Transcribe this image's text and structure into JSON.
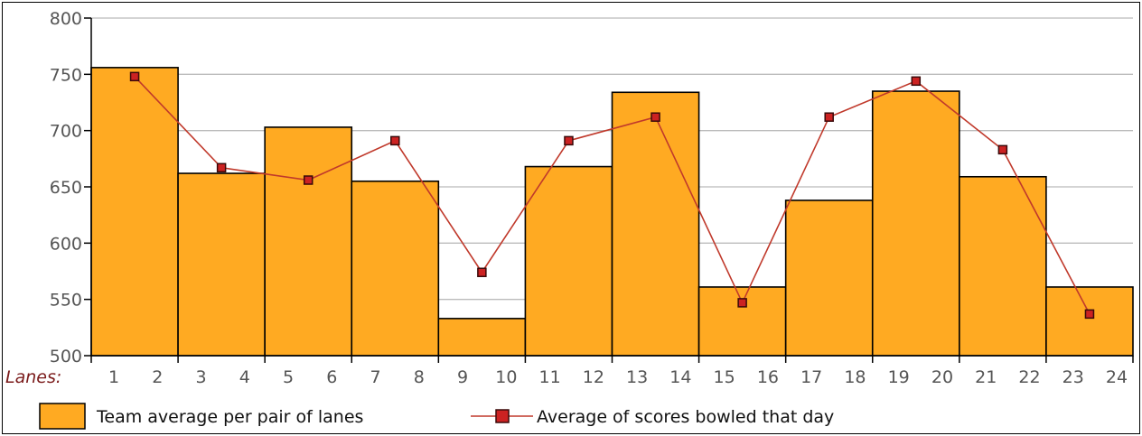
{
  "chart_data": {
    "type": "bar",
    "title": "",
    "xlabel": "Lanes:",
    "ylabel": "",
    "ylim": [
      500,
      800
    ],
    "yticks": [
      500,
      550,
      600,
      650,
      700,
      750,
      800
    ],
    "x_tick_labels": [
      "1",
      "2",
      "3",
      "4",
      "5",
      "6",
      "7",
      "8",
      "9",
      "10",
      "11",
      "12",
      "13",
      "14",
      "15",
      "16",
      "17",
      "18",
      "19",
      "20",
      "21",
      "22",
      "23",
      "24"
    ],
    "categories": [
      "1-2",
      "3-4",
      "5-6",
      "7-8",
      "9-10",
      "11-12",
      "13-14",
      "15-16",
      "17-18",
      "19-20",
      "21-22",
      "23-24"
    ],
    "series": [
      {
        "name": "Team average per pair of lanes",
        "kind": "bar",
        "values": [
          756,
          662,
          703,
          655,
          533,
          668,
          734,
          561,
          638,
          735,
          659,
          561
        ]
      },
      {
        "name": "Average of scores bowled that day",
        "kind": "line",
        "values": [
          748,
          667,
          656,
          691,
          574,
          691,
          712,
          547,
          712,
          744,
          683,
          537
        ]
      }
    ],
    "grid": true,
    "legend": "bottom",
    "colors": {
      "bar_fill": "#FFAA22",
      "bar_stroke": "#000000",
      "line": "#C0392B",
      "marker_fill": "#CC2222",
      "marker_stroke": "#3a0a0a",
      "grid": "#bbbbbb"
    }
  }
}
